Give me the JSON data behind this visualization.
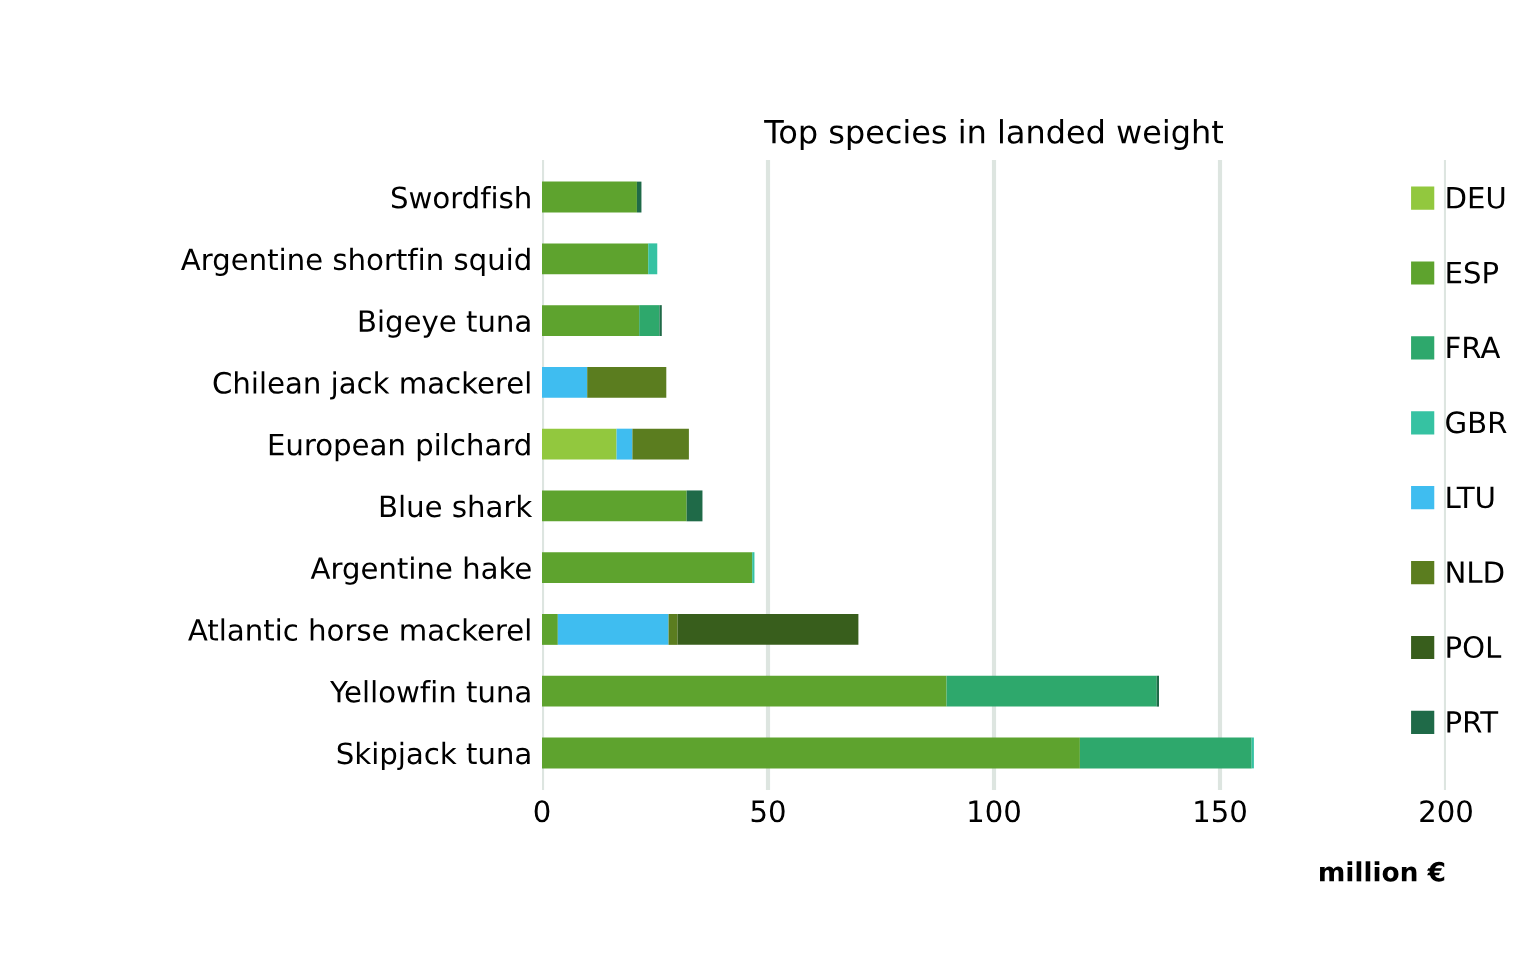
{
  "chart_data": {
    "type": "bar",
    "orientation": "horizontal",
    "stacked": true,
    "title": "Top species in landed weight",
    "xlabel": "million €",
    "categories": [
      "Swordfish",
      "Argentine shortfin squid",
      "Bigeye tuna",
      "Chilean jack mackerel",
      "European pilchard",
      "Blue shark",
      "Argentine hake",
      "Atlantic horse mackerel",
      "Yellowfin tuna",
      "Skipjack tuna"
    ],
    "series": [
      {
        "name": "DEU",
        "color": "#92c83e",
        "values": [
          null,
          null,
          null,
          null,
          16.5,
          null,
          null,
          null,
          null,
          null
        ]
      },
      {
        "name": "ESP",
        "color": "#5ea32e",
        "values": [
          21,
          23.5,
          21.5,
          null,
          null,
          32,
          46.5,
          3.5,
          89.5,
          119
        ]
      },
      {
        "name": "FRA",
        "color": "#2ea86c",
        "values": [
          null,
          null,
          4.5,
          null,
          null,
          null,
          null,
          null,
          46.5,
          38
        ]
      },
      {
        "name": "GBR",
        "color": "#36c2a2",
        "values": [
          null,
          2,
          null,
          null,
          null,
          null,
          0.5,
          null,
          null,
          0.5
        ]
      },
      {
        "name": "LTU",
        "color": "#3fbdf0",
        "values": [
          null,
          null,
          null,
          10,
          3.5,
          null,
          null,
          24.5,
          null,
          null
        ]
      },
      {
        "name": "NLD",
        "color": "#5b7d1f",
        "values": [
          null,
          null,
          null,
          17.5,
          12.5,
          null,
          null,
          2,
          null,
          null
        ]
      },
      {
        "name": "POL",
        "color": "#385e1c",
        "values": [
          null,
          null,
          null,
          null,
          null,
          null,
          null,
          40,
          null,
          null
        ]
      },
      {
        "name": "PRT",
        "color": "#1f6a48",
        "values": [
          1,
          null,
          0.5,
          null,
          null,
          3.5,
          null,
          null,
          0.5,
          null
        ]
      }
    ],
    "xlim": [
      0,
      200
    ],
    "xticks": [
      0,
      50,
      100,
      150,
      200
    ],
    "grid": "x",
    "legend": "right"
  }
}
